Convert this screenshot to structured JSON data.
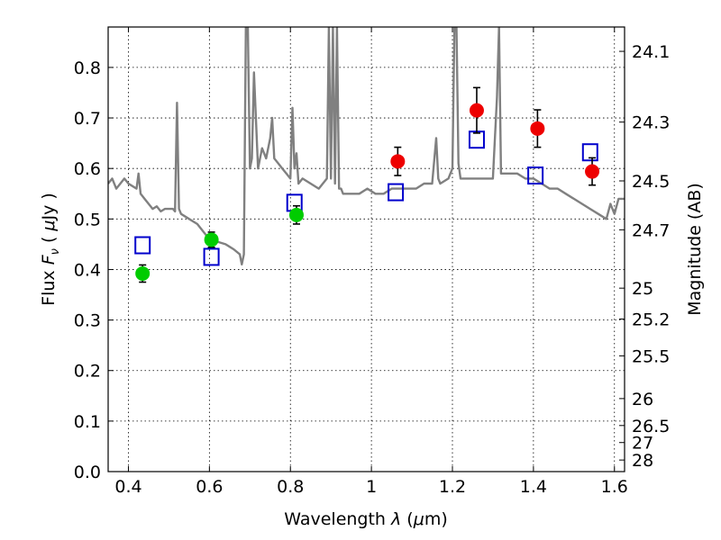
{
  "chart_data": {
    "type": "scatter",
    "title": "",
    "xlabel": "Wavelength  λ (μm)",
    "ylabel": "Flux  F_ν  ( μJy )",
    "ylabel_parts": {
      "pre": "Flux  ",
      "main": "F",
      "sub": "ν",
      "mid": "  ( ",
      "mu": "μ",
      "post": "Jy )"
    },
    "xlabel_parts": {
      "pre": "Wavelength  ",
      "lam": "λ",
      "mid": " (",
      "mu": "μ",
      "post": "m)"
    },
    "y2label": "Magnitude (AB)",
    "xlim": [
      0.35,
      1.625
    ],
    "ylim": [
      0.0,
      0.88
    ],
    "grid": true,
    "xticks": [
      0.4,
      0.6,
      0.8,
      1.0,
      1.2,
      1.4,
      1.6
    ],
    "xtick_labels": [
      "0.4",
      "0.6",
      "0.8",
      "1",
      "1.2",
      "1.4",
      "1.6"
    ],
    "yticks": [
      0.0,
      0.1,
      0.2,
      0.3,
      0.4,
      0.5,
      0.6,
      0.7,
      0.8
    ],
    "ytick_labels": [
      "0.0",
      "0.1",
      "0.2",
      "0.3",
      "0.4",
      "0.5",
      "0.6",
      "0.7",
      "0.8"
    ],
    "y2ticks": [
      {
        "flux": 0.8318,
        "label": "24.1"
      },
      {
        "flux": 0.6918,
        "label": "24.3"
      },
      {
        "flux": 0.5754,
        "label": "24.5"
      },
      {
        "flux": 0.4786,
        "label": "24.7"
      },
      {
        "flux": 0.3631,
        "label": "25"
      },
      {
        "flux": 0.302,
        "label": "25.2"
      },
      {
        "flux": 0.2291,
        "label": "25.5"
      },
      {
        "flux": 0.1445,
        "label": "26"
      },
      {
        "flux": 0.0912,
        "label": "26.5"
      },
      {
        "flux": 0.0575,
        "label": "27"
      },
      {
        "flux": 0.0229,
        "label": "28"
      }
    ],
    "series": [
      {
        "kind": "line",
        "color": "#808080",
        "x": [
          0.35,
          0.36,
          0.37,
          0.38,
          0.39,
          0.4,
          0.41,
          0.42,
          0.425,
          0.43,
          0.44,
          0.45,
          0.46,
          0.47,
          0.48,
          0.49,
          0.5,
          0.51,
          0.515,
          0.52,
          0.525,
          0.53,
          0.55,
          0.57,
          0.59,
          0.6,
          0.62,
          0.64,
          0.66,
          0.675,
          0.68,
          0.685,
          0.69,
          0.695,
          0.7,
          0.705,
          0.71,
          0.72,
          0.73,
          0.74,
          0.75,
          0.755,
          0.76,
          0.77,
          0.78,
          0.79,
          0.8,
          0.805,
          0.81,
          0.815,
          0.82,
          0.83,
          0.85,
          0.87,
          0.89,
          0.895,
          0.9,
          0.905,
          0.91,
          0.915,
          0.92,
          0.925,
          0.93,
          0.95,
          0.97,
          0.99,
          1.01,
          1.03,
          1.05,
          1.07,
          1.09,
          1.11,
          1.13,
          1.15,
          1.16,
          1.165,
          1.17,
          1.19,
          1.2,
          1.205,
          1.21,
          1.215,
          1.22,
          1.24,
          1.26,
          1.28,
          1.3,
          1.31,
          1.315,
          1.32,
          1.34,
          1.36,
          1.38,
          1.4,
          1.42,
          1.44,
          1.46,
          1.48,
          1.5,
          1.52,
          1.54,
          1.56,
          1.58,
          1.59,
          1.6,
          1.61,
          1.625
        ],
        "y": [
          0.57,
          0.58,
          0.56,
          0.57,
          0.58,
          0.57,
          0.565,
          0.56,
          0.59,
          0.55,
          0.54,
          0.53,
          0.52,
          0.525,
          0.515,
          0.52,
          0.52,
          0.52,
          0.515,
          0.73,
          0.52,
          0.51,
          0.5,
          0.49,
          0.47,
          0.46,
          0.455,
          0.45,
          0.44,
          0.43,
          0.41,
          0.43,
          0.88,
          0.88,
          0.6,
          0.62,
          0.79,
          0.6,
          0.64,
          0.62,
          0.66,
          0.7,
          0.62,
          0.61,
          0.6,
          0.59,
          0.58,
          0.72,
          0.6,
          0.63,
          0.57,
          0.58,
          0.57,
          0.56,
          0.58,
          0.88,
          0.58,
          0.88,
          0.57,
          0.88,
          0.56,
          0.56,
          0.55,
          0.55,
          0.55,
          0.56,
          0.55,
          0.55,
          0.56,
          0.56,
          0.56,
          0.56,
          0.57,
          0.57,
          0.66,
          0.58,
          0.57,
          0.58,
          0.6,
          0.88,
          0.88,
          0.61,
          0.58,
          0.58,
          0.58,
          0.58,
          0.58,
          0.74,
          0.88,
          0.59,
          0.59,
          0.59,
          0.58,
          0.58,
          0.57,
          0.56,
          0.56,
          0.55,
          0.54,
          0.53,
          0.52,
          0.51,
          0.5,
          0.53,
          0.51,
          0.54,
          0.54
        ]
      },
      {
        "kind": "open-square",
        "color": "#0000cc",
        "x": [
          0.435,
          0.605,
          0.81,
          1.06,
          1.26,
          1.405,
          1.54
        ],
        "y": [
          0.448,
          0.425,
          0.532,
          0.553,
          0.657,
          0.586,
          0.632
        ]
      },
      {
        "kind": "filled-circle",
        "color": "#00cc00",
        "x": [
          0.435,
          0.605,
          0.815
        ],
        "y": [
          0.392,
          0.459,
          0.508
        ],
        "yerr": [
          0.017,
          0.015,
          0.018
        ]
      },
      {
        "kind": "filled-circle",
        "color": "#ee0000",
        "x": [
          1.065,
          1.26,
          1.41,
          1.545
        ],
        "y": [
          0.614,
          0.715,
          0.679,
          0.594
        ],
        "yerr": [
          0.028,
          0.045,
          0.037,
          0.027
        ]
      }
    ]
  }
}
